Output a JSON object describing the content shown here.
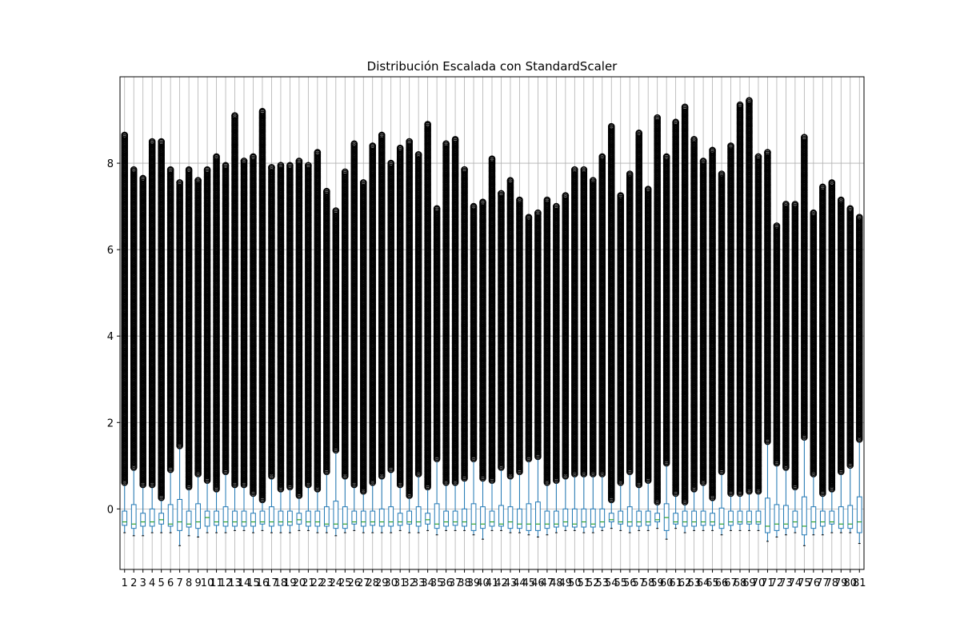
{
  "chart_data": {
    "type": "box",
    "title": "Distribución Escalada con StandardScaler",
    "xlabel": "",
    "ylabel": "",
    "ylim": [
      -1.4,
      10.0
    ],
    "yticks": [
      0,
      2,
      4,
      6,
      8
    ],
    "grid": true,
    "categories": [
      "1",
      "2",
      "3",
      "4",
      "5",
      "6",
      "7",
      "8",
      "9",
      "10",
      "11",
      "12",
      "13",
      "14",
      "15",
      "16",
      "17",
      "18",
      "19",
      "20",
      "21",
      "22",
      "23",
      "24",
      "25",
      "26",
      "27",
      "28",
      "29",
      "30",
      "31",
      "32",
      "33",
      "34",
      "35",
      "36",
      "37",
      "38",
      "39",
      "40",
      "41",
      "42",
      "43",
      "44",
      "45",
      "46",
      "47",
      "48",
      "49",
      "50",
      "51",
      "52",
      "53",
      "54",
      "55",
      "56",
      "57",
      "58",
      "59",
      "60",
      "61",
      "62",
      "63",
      "64",
      "65",
      "66",
      "67",
      "68",
      "69",
      "70",
      "71",
      "72",
      "73",
      "74",
      "75",
      "76",
      "77",
      "78",
      "79",
      "80",
      "81"
    ],
    "whisker_low": [
      -0.55,
      -0.62,
      -0.62,
      -0.55,
      -0.55,
      -0.55,
      -0.85,
      -0.62,
      -0.65,
      -0.55,
      -0.55,
      -0.55,
      -0.5,
      -0.5,
      -0.55,
      -0.5,
      -0.55,
      -0.55,
      -0.55,
      -0.5,
      -0.5,
      -0.55,
      -0.55,
      -0.62,
      -0.55,
      -0.5,
      -0.55,
      -0.55,
      -0.55,
      -0.55,
      -0.5,
      -0.55,
      -0.55,
      -0.5,
      -0.6,
      -0.5,
      -0.5,
      -0.5,
      -0.6,
      -0.7,
      -0.5,
      -0.5,
      -0.55,
      -0.55,
      -0.6,
      -0.65,
      -0.6,
      -0.55,
      -0.5,
      -0.5,
      -0.55,
      -0.55,
      -0.5,
      -0.45,
      -0.5,
      -0.55,
      -0.5,
      -0.5,
      -0.45,
      -0.7,
      -0.45,
      -0.55,
      -0.5,
      -0.5,
      -0.5,
      -0.6,
      -0.5,
      -0.5,
      -0.5,
      -0.5,
      -0.75,
      -0.65,
      -0.6,
      -0.55,
      -0.85,
      -0.6,
      -0.6,
      -0.55,
      -0.55,
      -0.55,
      -0.8
    ],
    "q1": [
      -0.38,
      -0.45,
      -0.4,
      -0.4,
      -0.35,
      -0.4,
      -0.5,
      -0.42,
      -0.45,
      -0.4,
      -0.38,
      -0.4,
      -0.4,
      -0.4,
      -0.4,
      -0.35,
      -0.4,
      -0.38,
      -0.38,
      -0.35,
      -0.4,
      -0.4,
      -0.4,
      -0.45,
      -0.45,
      -0.35,
      -0.4,
      -0.38,
      -0.4,
      -0.4,
      -0.38,
      -0.35,
      -0.4,
      -0.35,
      -0.45,
      -0.4,
      -0.38,
      -0.4,
      -0.5,
      -0.45,
      -0.4,
      -0.4,
      -0.45,
      -0.45,
      -0.5,
      -0.5,
      -0.45,
      -0.42,
      -0.4,
      -0.42,
      -0.42,
      -0.42,
      -0.42,
      -0.3,
      -0.35,
      -0.4,
      -0.4,
      -0.38,
      -0.3,
      -0.5,
      -0.35,
      -0.4,
      -0.4,
      -0.38,
      -0.38,
      -0.45,
      -0.38,
      -0.35,
      -0.35,
      -0.35,
      -0.55,
      -0.5,
      -0.45,
      -0.42,
      -0.6,
      -0.45,
      -0.4,
      -0.35,
      -0.45,
      -0.45,
      -0.55
    ],
    "median": [
      -0.3,
      -0.35,
      -0.3,
      -0.3,
      -0.25,
      -0.35,
      -0.3,
      -0.35,
      -0.3,
      -0.2,
      -0.3,
      -0.3,
      -0.3,
      -0.3,
      -0.3,
      -0.3,
      -0.3,
      -0.3,
      -0.3,
      -0.25,
      -0.3,
      -0.3,
      -0.35,
      -0.35,
      -0.35,
      -0.3,
      -0.3,
      -0.3,
      -0.3,
      -0.3,
      -0.3,
      -0.3,
      -0.3,
      -0.25,
      -0.35,
      -0.3,
      -0.3,
      -0.3,
      -0.35,
      -0.35,
      -0.3,
      -0.35,
      -0.3,
      -0.35,
      -0.35,
      -0.35,
      -0.35,
      -0.35,
      -0.3,
      -0.35,
      -0.3,
      -0.35,
      -0.3,
      -0.25,
      -0.3,
      -0.3,
      -0.3,
      -0.3,
      -0.25,
      -0.2,
      -0.3,
      -0.3,
      -0.3,
      -0.3,
      -0.3,
      -0.35,
      -0.3,
      -0.3,
      -0.3,
      -0.3,
      -0.4,
      -0.35,
      -0.35,
      -0.3,
      -0.4,
      -0.3,
      -0.3,
      -0.3,
      -0.35,
      -0.35,
      -0.3
    ],
    "q3": [
      -0.05,
      0.1,
      -0.1,
      0.0,
      -0.1,
      0.1,
      0.22,
      -0.05,
      0.12,
      -0.05,
      -0.05,
      0.05,
      -0.05,
      -0.05,
      -0.1,
      -0.05,
      0.05,
      -0.05,
      -0.05,
      -0.1,
      -0.05,
      -0.05,
      0.05,
      0.18,
      0.05,
      -0.05,
      -0.05,
      -0.05,
      0.0,
      0.05,
      -0.1,
      -0.05,
      0.05,
      -0.1,
      0.12,
      -0.05,
      -0.05,
      0.0,
      0.12,
      0.05,
      -0.05,
      0.08,
      0.05,
      0.0,
      0.12,
      0.16,
      -0.05,
      -0.05,
      0.0,
      0.0,
      0.0,
      0.0,
      0.0,
      -0.1,
      -0.05,
      0.05,
      -0.05,
      -0.05,
      -0.1,
      0.12,
      -0.1,
      -0.05,
      -0.05,
      -0.05,
      -0.1,
      0.02,
      -0.05,
      -0.05,
      -0.05,
      -0.05,
      0.25,
      0.1,
      0.08,
      -0.05,
      0.28,
      0.05,
      -0.05,
      -0.05,
      0.05,
      0.08,
      0.28
    ],
    "whisker_high": [
      0.55,
      0.9,
      0.5,
      0.5,
      0.2,
      0.85,
      1.4,
      0.45,
      0.75,
      0.6,
      0.4,
      0.8,
      0.5,
      0.5,
      0.3,
      0.15,
      0.7,
      0.4,
      0.45,
      0.25,
      0.5,
      0.4,
      0.8,
      1.3,
      0.7,
      0.5,
      0.35,
      0.55,
      0.7,
      0.85,
      0.5,
      0.25,
      0.75,
      0.45,
      1.1,
      0.55,
      0.55,
      0.65,
      1.1,
      0.65,
      0.6,
      0.9,
      0.7,
      0.8,
      1.1,
      1.15,
      0.55,
      0.6,
      0.7,
      0.75,
      0.75,
      0.75,
      0.75,
      0.15,
      0.55,
      0.8,
      0.5,
      0.6,
      0.1,
      1.0,
      0.3,
      0.1,
      0.4,
      0.55,
      0.2,
      0.8,
      0.3,
      0.3,
      0.35,
      0.35,
      1.5,
      1.0,
      0.9,
      0.45,
      1.6,
      0.75,
      0.3,
      0.4,
      0.8,
      0.95,
      1.55
    ],
    "outlier_max": [
      8.65,
      7.85,
      7.65,
      8.5,
      8.5,
      7.85,
      7.55,
      7.85,
      7.6,
      7.85,
      8.15,
      7.95,
      9.1,
      8.05,
      8.15,
      9.2,
      7.9,
      7.95,
      7.95,
      8.05,
      7.95,
      8.25,
      7.35,
      6.9,
      7.8,
      8.45,
      7.55,
      8.4,
      8.65,
      8.0,
      8.35,
      8.5,
      8.2,
      8.9,
      6.95,
      8.45,
      8.55,
      7.85,
      7.0,
      7.1,
      8.1,
      7.3,
      7.6,
      7.15,
      6.75,
      6.85,
      7.15,
      7.0,
      7.25,
      7.85,
      7.85,
      7.6,
      8.15,
      8.85,
      7.25,
      7.75,
      8.7,
      7.4,
      9.05,
      8.15,
      8.95,
      9.3,
      8.55,
      8.05,
      8.3,
      7.75,
      8.4,
      9.35,
      9.45,
      8.15,
      8.25,
      6.55,
      7.05,
      7.05,
      8.6,
      6.85,
      7.45,
      7.55,
      7.15,
      6.95,
      6.75
    ]
  }
}
